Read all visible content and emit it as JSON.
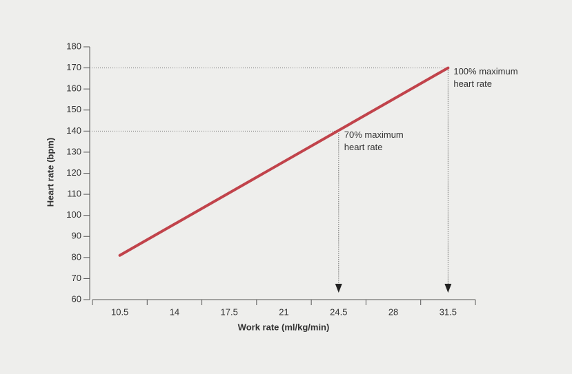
{
  "chart_data": {
    "type": "line",
    "x_label": "Work rate (ml/kg/min)",
    "y_label": "Heart rate (bpm)",
    "x": [
      10.5,
      31.5
    ],
    "series": [
      {
        "color": "#c1434b",
        "values": [
          81,
          170
        ]
      }
    ],
    "xlim": [
      8.75,
      33.25
    ],
    "xticks": [
      10.5,
      14,
      17.5,
      21,
      24.5,
      28,
      31.5
    ],
    "ylim": [
      60,
      180
    ],
    "yticks": [
      60,
      70,
      80,
      90,
      100,
      110,
      120,
      130,
      140,
      150,
      160,
      170,
      180
    ],
    "annotations": [
      {
        "lines": [
          "70% maximum",
          "heart rate"
        ],
        "x": 24.5,
        "y": 140
      },
      {
        "lines": [
          "100% maximum",
          "heart rate"
        ],
        "x": 31.5,
        "y": 170
      }
    ]
  }
}
